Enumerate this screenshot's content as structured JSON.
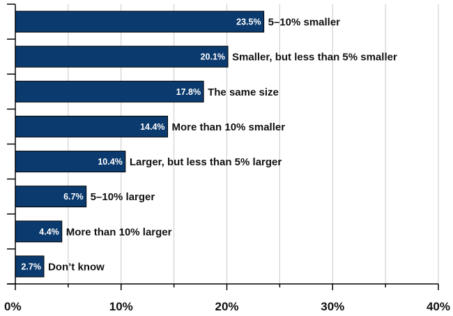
{
  "colors": {
    "bar_fill": "#0b3a6e",
    "bar_stroke": "#000000",
    "grid": "#c8c8c8",
    "axis": "#000000",
    "text": "#111111",
    "value_text": "#ffffff"
  },
  "chart_data": {
    "type": "bar",
    "orientation": "horizontal",
    "title": "",
    "xlabel": "",
    "ylabel": "",
    "xlim": [
      0,
      40
    ],
    "grid": true,
    "x_ticks": [
      0,
      5,
      10,
      15,
      20,
      25,
      30,
      35,
      40
    ],
    "x_tick_labels": [
      "0%",
      "10%",
      "20%",
      "30%",
      "40%"
    ],
    "categories": [
      "5–10% smaller",
      "Smaller, but less than 5% smaller",
      "The same size",
      "More than 10% smaller",
      "Larger, but less than 5% larger",
      "5–10% larger",
      "More than 10% larger",
      "Don’t know"
    ],
    "values": [
      23.5,
      20.1,
      17.8,
      14.4,
      10.4,
      6.7,
      4.4,
      2.7
    ],
    "value_labels": [
      "23.5%",
      "20.1%",
      "17.8%",
      "14.4%",
      "10.4%",
      "6.7%",
      "4.4%",
      "2.7%"
    ]
  }
}
